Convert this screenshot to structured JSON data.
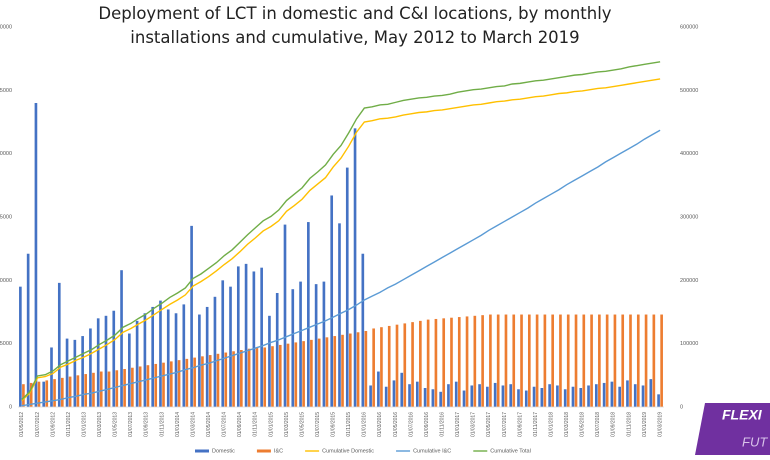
{
  "chart_data": {
    "type": "combo",
    "title": "Deployment of LCT in domestic and C&I locations, by monthly installations and cumulative, May 2012 to March 2019",
    "categories": [
      "01/05/2012",
      null,
      "01/07/2012",
      null,
      "01/09/2012",
      null,
      "01/11/2012",
      null,
      "01/01/2013",
      null,
      "01/03/2013",
      null,
      "01/05/2013",
      null,
      "01/07/2013",
      null,
      "01/09/2013",
      null,
      "01/11/2013",
      null,
      "01/01/2014",
      null,
      "01/03/2014",
      null,
      "01/05/2014",
      null,
      "01/07/2014",
      null,
      "01/09/2014",
      null,
      "01/11/2014",
      null,
      "01/01/2015",
      null,
      "01/03/2015",
      null,
      "01/05/2015",
      null,
      "01/07/2015",
      null,
      "01/09/2015",
      null,
      "01/11/2015",
      null,
      "01/01/2016",
      null,
      "01/03/2016",
      null,
      "01/05/2016",
      null,
      "01/07/2016",
      null,
      "01/09/2016",
      null,
      "01/11/2016",
      null,
      "01/01/2017",
      null,
      "01/03/2017",
      null,
      "01/05/2017",
      null,
      "01/07/2017",
      null,
      "01/09/2017",
      null,
      "01/11/2017",
      null,
      "01/01/2018",
      null,
      "01/03/2018",
      null,
      "01/05/2018",
      null,
      "01/07/2018",
      null,
      "01/09/2018",
      null,
      "01/11/2018",
      null,
      "01/01/2019",
      null,
      "01/03/2019"
    ],
    "ylim": [
      0,
      30000
    ],
    "yticks": [
      0,
      5000,
      10000,
      15000,
      20000,
      25000,
      30000
    ],
    "y2lim": [
      0,
      600000
    ],
    "y2ticks": [
      0,
      100000,
      200000,
      300000,
      400000,
      500000,
      600000
    ],
    "grid": false,
    "legend": "bottom",
    "series": [
      {
        "name": "Domestic",
        "type": "bar",
        "color": "#4472c4",
        "values": [
          9500,
          12100,
          24000,
          2000,
          4700,
          9800,
          5400,
          5300,
          5600,
          6200,
          7000,
          7200,
          7600,
          10800,
          5800,
          6800,
          7400,
          7900,
          8400,
          7700,
          7400,
          8100,
          14300,
          7300,
          7900,
          8700,
          10000,
          9500,
          11100,
          11300,
          10700,
          11000,
          7200,
          9000,
          14400,
          9300,
          9900,
          14600,
          9700,
          9900,
          16700,
          14500,
          18900,
          22000,
          12100,
          1700,
          2800,
          1600,
          2100,
          2700,
          1800,
          2000,
          1500,
          1400,
          1200,
          1800,
          2000,
          1300,
          1700,
          1800,
          1600,
          1900,
          1700,
          1800,
          1400,
          1300,
          1600,
          1500,
          1800,
          1700,
          1400,
          1600,
          1500,
          1700,
          1800,
          1900,
          2000,
          1600,
          2100,
          1800,
          1700,
          2200,
          1000
        ]
      },
      {
        "name": "I&C",
        "type": "bar",
        "color": "#ed7d31",
        "values": [
          1800,
          1900,
          2000,
          2100,
          2200,
          2300,
          2400,
          2500,
          2600,
          2700,
          2800,
          2800,
          2900,
          3000,
          3100,
          3200,
          3300,
          3400,
          3500,
          3600,
          3700,
          3800,
          3900,
          4000,
          4100,
          4200,
          4300,
          4400,
          4500,
          4600,
          4700,
          4700,
          4800,
          4900,
          5000,
          5100,
          5200,
          5300,
          5400,
          5500,
          5600,
          5700,
          5800,
          5900,
          6000,
          6200,
          6300,
          6400,
          6500,
          6600,
          6700,
          6800,
          6900,
          6950,
          7000,
          7050,
          7100,
          7150,
          7200,
          7250,
          7300,
          7300,
          7300,
          7300,
          7300,
          7300,
          7300,
          7300,
          7300,
          7300,
          7300,
          7300,
          7300,
          7300,
          7300,
          7300,
          7300,
          7300,
          7300,
          7300,
          7300,
          7300,
          7300
        ]
      },
      {
        "name": "Cumulative Domestic",
        "type": "line",
        "axis": "y2",
        "color": "#ffc000",
        "values": [
          10000,
          22000,
          46000,
          48000,
          53000,
          63000,
          68000,
          74000,
          79000,
          85000,
          92000,
          99000,
          107000,
          118000,
          124000,
          131000,
          138000,
          146000,
          154000,
          162000,
          169000,
          177000,
          191000,
          198000,
          206000,
          215000,
          225000,
          234000,
          245000,
          257000,
          267000,
          278000,
          285000,
          294000,
          309000,
          318000,
          328000,
          342000,
          352000,
          362000,
          379000,
          393000,
          412000,
          434000,
          450000,
          452000,
          455000,
          456000,
          458000,
          461000,
          463000,
          465000,
          466000,
          468000,
          469000,
          471000,
          473000,
          475000,
          477000,
          478000,
          480000,
          482000,
          483000,
          485000,
          486000,
          488000,
          490000,
          491000,
          493000,
          495000,
          496000,
          498000,
          499000,
          501000,
          503000,
          504000,
          506000,
          508000,
          510000,
          512000,
          514000,
          516000,
          518000
        ]
      },
      {
        "name": "Cumulative I&C",
        "type": "line",
        "axis": "y2",
        "color": "#5b9bd5",
        "values": [
          2000,
          4000,
          6000,
          8000,
          10000,
          12000,
          15000,
          17000,
          20000,
          22000,
          25000,
          28000,
          31000,
          34000,
          37000,
          40000,
          43000,
          46000,
          49000,
          52000,
          55000,
          59000,
          62000,
          66000,
          69000,
          73000,
          77000,
          81000,
          85000,
          89000,
          93000,
          97000,
          102000,
          106000,
          111000,
          116000,
          121000,
          126000,
          131000,
          136000,
          142000,
          148000,
          154000,
          161000,
          169000,
          175000,
          181000,
          188000,
          194000,
          201000,
          208000,
          215000,
          222000,
          229000,
          236000,
          243000,
          250000,
          257000,
          264000,
          271000,
          279000,
          286000,
          293000,
          300000,
          307000,
          314000,
          322000,
          329000,
          336000,
          343000,
          351000,
          358000,
          365000,
          372000,
          379000,
          387000,
          394000,
          401000,
          408000,
          415000,
          423000,
          430000,
          437000
        ]
      },
      {
        "name": "Cumulative Total",
        "type": "line",
        "axis": "y2",
        "color": "#70ad47",
        "values": [
          12000,
          24000,
          49000,
          51000,
          57000,
          67000,
          73000,
          79000,
          85000,
          91000,
          99000,
          106000,
          114000,
          126000,
          132000,
          140000,
          147000,
          156000,
          164000,
          173000,
          180000,
          188000,
          203000,
          210000,
          219000,
          228000,
          239000,
          248000,
          260000,
          272000,
          283000,
          294000,
          301000,
          311000,
          326000,
          336000,
          346000,
          361000,
          371000,
          382000,
          399000,
          413000,
          433000,
          455000,
          472000,
          474000,
          477000,
          478000,
          481000,
          484000,
          486000,
          488000,
          489000,
          491000,
          492000,
          494000,
          497000,
          499000,
          501000,
          502000,
          504000,
          506000,
          507000,
          510000,
          511000,
          513000,
          515000,
          516000,
          518000,
          520000,
          522000,
          524000,
          525000,
          527000,
          529000,
          530000,
          532000,
          534000,
          537000,
          539000,
          541000,
          543000,
          545000
        ]
      }
    ],
    "annotations": [
      "FLEXI",
      "FUT"
    ]
  }
}
